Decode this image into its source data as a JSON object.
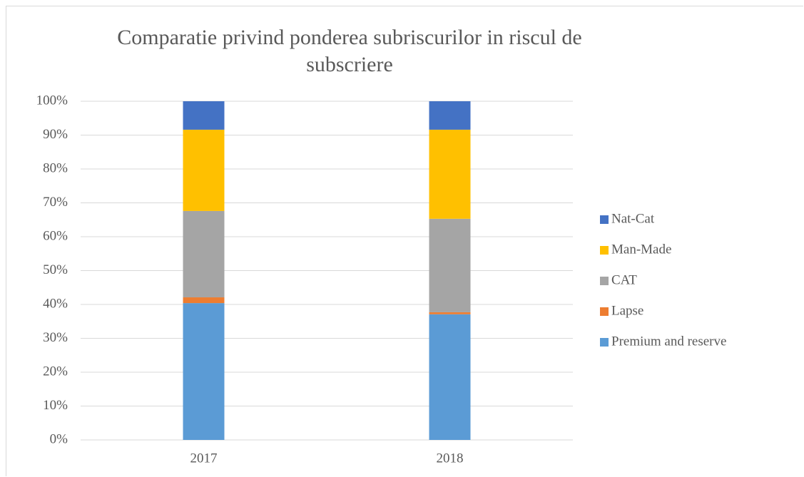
{
  "chart_data": {
    "type": "stacked_bar",
    "title": "Comparatie privind ponderea subriscurilor in riscul de subscriere",
    "categories": [
      "2017",
      "2018"
    ],
    "series": [
      {
        "name": "Premium and reserve",
        "color": "#5b9bd5",
        "values": [
          40.4,
          37.1
        ]
      },
      {
        "name": "Lapse",
        "color": "#ed7d31",
        "values": [
          1.7,
          0.6
        ]
      },
      {
        "name": "CAT",
        "color": "#a5a5a5",
        "values": [
          25.5,
          27.6
        ]
      },
      {
        "name": "Man-Made",
        "color": "#ffc000",
        "values": [
          24.0,
          26.3
        ]
      },
      {
        "name": "Nat-Cat",
        "color": "#4472c4",
        "values": [
          8.4,
          8.4
        ]
      }
    ],
    "ylim": [
      0,
      100
    ],
    "yticks": [
      {
        "value": 0,
        "label": "0%"
      },
      {
        "value": 10,
        "label": "10%"
      },
      {
        "value": 20,
        "label": "20%"
      },
      {
        "value": 30,
        "label": "30%"
      },
      {
        "value": 40,
        "label": "40%"
      },
      {
        "value": 50,
        "label": "50%"
      },
      {
        "value": 60,
        "label": "60%"
      },
      {
        "value": 70,
        "label": "70%"
      },
      {
        "value": 80,
        "label": "80%"
      },
      {
        "value": 90,
        "label": "90%"
      },
      {
        "value": 100,
        "label": "100%"
      }
    ],
    "grid": true,
    "legend": "right"
  }
}
